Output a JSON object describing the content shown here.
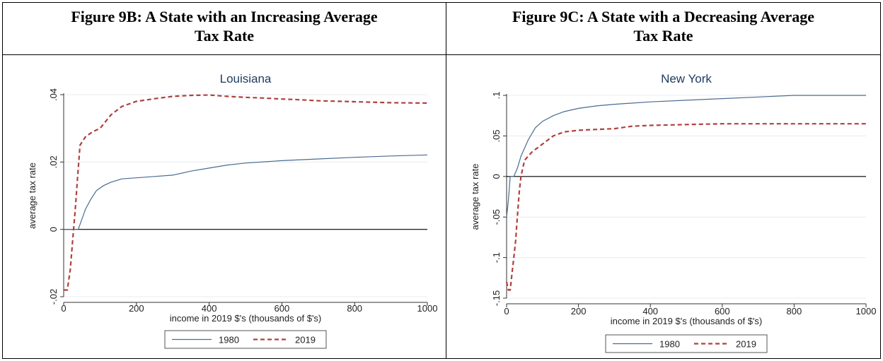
{
  "figures": [
    {
      "header_line1": "Figure 9B: A State with an Increasing Average",
      "header_line2": "Tax Rate"
    },
    {
      "header_line1": "Figure 9C: A State with a Decreasing Average",
      "header_line2": "Tax Rate"
    }
  ],
  "chart_data": [
    {
      "type": "line",
      "title": "Louisiana",
      "xlabel": "income in 2019 $'s (thousands of $'s)",
      "ylabel": "average tax rate",
      "xlim": [
        0,
        1000
      ],
      "ylim": [
        -0.02,
        0.04
      ],
      "xticks": [
        0,
        200,
        400,
        600,
        800,
        1000
      ],
      "xtick_labels": [
        "0",
        "200",
        "400",
        "600",
        "800",
        "1000"
      ],
      "yticks": [
        -0.02,
        0,
        0.02,
        0.04
      ],
      "ytick_labels": [
        "-.02",
        "0",
        ".02",
        ".04"
      ],
      "zero_line": 0,
      "grid": true,
      "legend_position": "bottom",
      "series": [
        {
          "name": "1980",
          "color": "#4a6b8f",
          "style": "solid",
          "points": [
            [
              0,
              0
            ],
            [
              40,
              0
            ],
            [
              50,
              0.003
            ],
            [
              60,
              0.006
            ],
            [
              75,
              0.009
            ],
            [
              90,
              0.0115
            ],
            [
              110,
              0.013
            ],
            [
              130,
              0.014
            ],
            [
              160,
              0.015
            ],
            [
              200,
              0.0153
            ],
            [
              250,
              0.0157
            ],
            [
              300,
              0.0161
            ],
            [
              350,
              0.0173
            ],
            [
              400,
              0.0182
            ],
            [
              450,
              0.0191
            ],
            [
              500,
              0.0197
            ],
            [
              600,
              0.0204
            ],
            [
              700,
              0.0209
            ],
            [
              800,
              0.0214
            ],
            [
              900,
              0.0218
            ],
            [
              1000,
              0.0221
            ]
          ]
        },
        {
          "name": "2019",
          "color": "#b0403f",
          "style": "dashed",
          "points": [
            [
              0,
              -0.018
            ],
            [
              10,
              -0.018
            ],
            [
              18,
              -0.012
            ],
            [
              25,
              -0.003
            ],
            [
              32,
              0.006
            ],
            [
              38,
              0.015
            ],
            [
              45,
              0.025
            ],
            [
              60,
              0.0275
            ],
            [
              80,
              0.029
            ],
            [
              100,
              0.03
            ],
            [
              130,
              0.034
            ],
            [
              160,
              0.0365
            ],
            [
              200,
              0.038
            ],
            [
              250,
              0.0388
            ],
            [
              300,
              0.0395
            ],
            [
              350,
              0.0398
            ],
            [
              400,
              0.0399
            ],
            [
              450,
              0.0395
            ],
            [
              500,
              0.0392
            ],
            [
              550,
              0.039
            ],
            [
              600,
              0.0387
            ],
            [
              650,
              0.0385
            ],
            [
              700,
              0.0382
            ],
            [
              800,
              0.0379
            ],
            [
              900,
              0.0376
            ],
            [
              1000,
              0.0375
            ]
          ]
        }
      ]
    },
    {
      "type": "line",
      "title": "New York",
      "xlabel": "income in 2019 $'s (thousands of $'s)",
      "ylabel": "average tax rate",
      "xlim": [
        0,
        1000
      ],
      "ylim": [
        -0.15,
        0.1
      ],
      "xticks": [
        0,
        200,
        400,
        600,
        800,
        1000
      ],
      "xtick_labels": [
        "0",
        "200",
        "400",
        "600",
        "800",
        "1000"
      ],
      "yticks": [
        -0.15,
        -0.1,
        -0.05,
        0,
        0.05,
        0.1
      ],
      "ytick_labels": [
        "-.15",
        "-.1",
        "-.05",
        "0",
        ".05",
        ".1"
      ],
      "zero_line": 0,
      "grid": true,
      "legend_position": "bottom",
      "series": [
        {
          "name": "1980",
          "color": "#4a6b8f",
          "style": "solid",
          "points": [
            [
              0,
              -0.05
            ],
            [
              5,
              -0.03
            ],
            [
              10,
              0
            ],
            [
              20,
              0
            ],
            [
              30,
              0.01
            ],
            [
              40,
              0.025
            ],
            [
              60,
              0.045
            ],
            [
              80,
              0.06
            ],
            [
              100,
              0.068
            ],
            [
              130,
              0.075
            ],
            [
              160,
              0.08
            ],
            [
              200,
              0.084
            ],
            [
              250,
              0.087
            ],
            [
              300,
              0.089
            ],
            [
              400,
              0.092
            ],
            [
              500,
              0.094
            ],
            [
              600,
              0.096
            ],
            [
              700,
              0.098
            ],
            [
              800,
              0.1
            ],
            [
              900,
              0.1
            ],
            [
              1000,
              0.1
            ]
          ]
        },
        {
          "name": "2019",
          "color": "#b0403f",
          "style": "dashed",
          "points": [
            [
              0,
              -0.13
            ],
            [
              5,
              -0.14
            ],
            [
              10,
              -0.14
            ],
            [
              15,
              -0.12
            ],
            [
              20,
              -0.1
            ],
            [
              25,
              -0.08
            ],
            [
              30,
              -0.05
            ],
            [
              35,
              -0.02
            ],
            [
              40,
              0
            ],
            [
              50,
              0.02
            ],
            [
              70,
              0.03
            ],
            [
              100,
              0.04
            ],
            [
              130,
              0.05
            ],
            [
              160,
              0.055
            ],
            [
              200,
              0.057
            ],
            [
              250,
              0.058
            ],
            [
              300,
              0.059
            ],
            [
              350,
              0.062
            ],
            [
              400,
              0.063
            ],
            [
              500,
              0.064
            ],
            [
              600,
              0.065
            ],
            [
              800,
              0.065
            ],
            [
              1000,
              0.065
            ]
          ]
        }
      ]
    }
  ]
}
